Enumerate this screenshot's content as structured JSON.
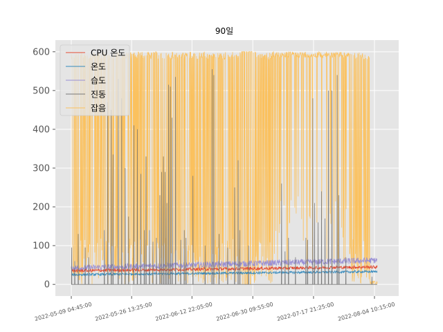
{
  "chart_data": {
    "type": "line",
    "title": "90일",
    "xlabel": "",
    "ylabel": "",
    "ylim": [
      -30,
      630
    ],
    "x_tick_labels": [
      "2022-05-09 04:45:00",
      "2022-05-26 13:25:00",
      "2022-06-12 22:05:00",
      "2022-06-30 09:55:00",
      "2022-07-17 21:25:00",
      "2022-08-04 10:15:00"
    ],
    "x_ticks_days": [
      0,
      17.36,
      34.72,
      52.22,
      69.69,
      87.23
    ],
    "x_range_days": [
      0,
      88
    ],
    "y_ticks": [
      0,
      100,
      200,
      300,
      400,
      500,
      600
    ],
    "grid": true,
    "legend_position": "top-left",
    "series": [
      {
        "name": "CPU 온도",
        "color": "#E24A33",
        "linewidth": 0.8
      },
      {
        "name": "온도",
        "color": "#348ABD",
        "linewidth": 0.8
      },
      {
        "name": "습도",
        "color": "#988ED5",
        "linewidth": 0.8
      },
      {
        "name": "진동",
        "color": "#777777",
        "linewidth": 0.8
      },
      {
        "name": "잡음",
        "color": "#FBC15E",
        "linewidth": 0.8
      }
    ],
    "series_baselines": {
      "CPU 온도": {
        "start": 35,
        "end": 45,
        "noise": 4
      },
      "온도": {
        "start": 25,
        "end": 33,
        "noise": 3
      },
      "습도": {
        "start": 42,
        "end": 62,
        "noise": 8
      },
      "진동": {
        "base": 0
      },
      "잡음": {
        "high": 600,
        "low": 0
      }
    },
    "vibration_spikes": [
      [
        0.1,
        95
      ],
      [
        1.0,
        60
      ],
      [
        2.0,
        130
      ],
      [
        4.0,
        95
      ],
      [
        5.0,
        70
      ],
      [
        9.5,
        140
      ],
      [
        10.5,
        470
      ],
      [
        11.5,
        450
      ],
      [
        12.0,
        335
      ],
      [
        13.5,
        530
      ],
      [
        14.5,
        480
      ],
      [
        15.5,
        300
      ],
      [
        16.5,
        175
      ],
      [
        18.0,
        410
      ],
      [
        19.0,
        400
      ],
      [
        20.0,
        285
      ],
      [
        21.0,
        140
      ],
      [
        21.5,
        330
      ],
      [
        22.5,
        140
      ],
      [
        23.5,
        110
      ],
      [
        24.5,
        120
      ],
      [
        25.5,
        230
      ],
      [
        26.0,
        290
      ],
      [
        26.5,
        330
      ],
      [
        27.0,
        290
      ],
      [
        27.5,
        210
      ],
      [
        28.0,
        515
      ],
      [
        28.5,
        510
      ],
      [
        29.0,
        430
      ],
      [
        30.0,
        535
      ],
      [
        31.5,
        115
      ],
      [
        32.5,
        140
      ],
      [
        33.0,
        120
      ],
      [
        35.0,
        280
      ],
      [
        38.5,
        100
      ],
      [
        40.5,
        555
      ],
      [
        41.0,
        540
      ],
      [
        42.5,
        130
      ],
      [
        45.0,
        95
      ],
      [
        47.0,
        250
      ],
      [
        48.0,
        320
      ],
      [
        48.5,
        140
      ],
      [
        51.0,
        100
      ],
      [
        60.5,
        260
      ],
      [
        61.5,
        85
      ],
      [
        62.5,
        120
      ],
      [
        64.5,
        70
      ],
      [
        67.5,
        120
      ],
      [
        68.0,
        115
      ],
      [
        69.5,
        480
      ],
      [
        70.0,
        210
      ],
      [
        71.0,
        160
      ],
      [
        72.0,
        240
      ],
      [
        73.0,
        170
      ],
      [
        74.0,
        500
      ],
      [
        75.0,
        500
      ],
      [
        76.5,
        540
      ],
      [
        77.0,
        230
      ],
      [
        79.0,
        70
      ],
      [
        86.5,
        20
      ]
    ]
  }
}
